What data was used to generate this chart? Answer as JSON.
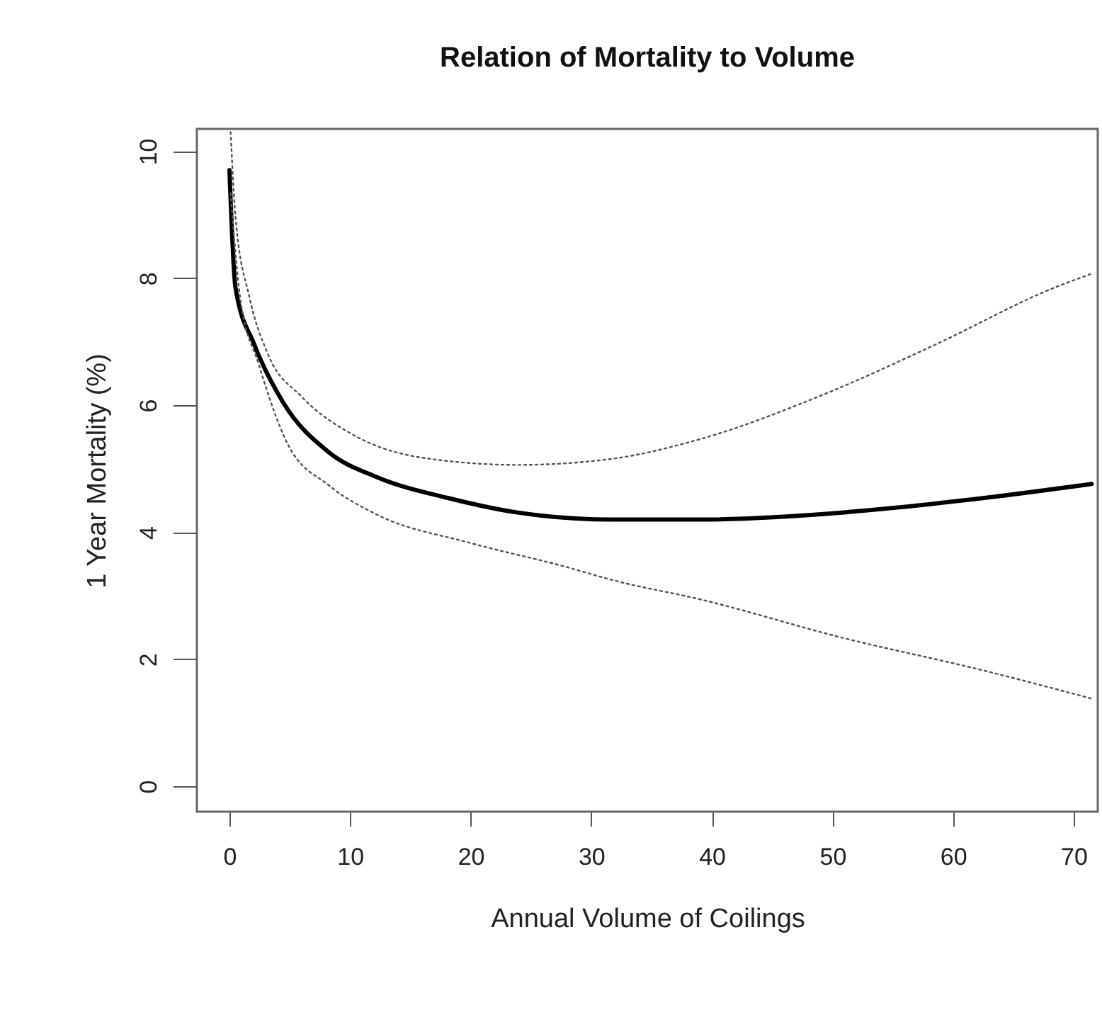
{
  "chart_data": {
    "type": "line",
    "title": "Relation of Mortality to Volume",
    "xlabel": "Annual Volume of Coilings",
    "ylabel": "1 Year Mortality (%)",
    "xlim": [
      -2.7,
      72
    ],
    "ylim": [
      -0.4,
      10.35
    ],
    "xticks": [
      0,
      10,
      20,
      30,
      40,
      50,
      60,
      70
    ],
    "yticks": [
      0,
      2,
      4,
      6,
      8,
      10
    ],
    "grid": false,
    "series": [
      {
        "color": "#000000",
        "line_style": "solid",
        "x": [
          0,
          0.5,
          2.05,
          4.4,
          8.3,
          12.2,
          18.1,
          23.9,
          31.7,
          39.1,
          50.8,
          62.6,
          71.5
        ],
        "values": [
          9.7,
          7.85,
          6.96,
          6.06,
          5.25,
          4.87,
          4.54,
          4.31,
          4.2,
          4.2,
          4.31,
          4.54,
          4.76
        ]
      },
      {
        "color": "#555555",
        "line_style": "dotted",
        "x": [
          0.1,
          0.5,
          1.66,
          3.2,
          5.95,
          10.2,
          16.1,
          23.9,
          31.5,
          39.1,
          48.9,
          58.6,
          68.4,
          71.5
        ],
        "values": [
          10.3,
          8.97,
          7.7,
          6.8,
          6.14,
          5.54,
          5.17,
          5.06,
          5.15,
          5.47,
          6.14,
          6.96,
          7.85,
          8.07
        ]
      },
      {
        "color": "#555555",
        "line_style": "dotted",
        "x": [
          0.1,
          0.88,
          2.4,
          4.8,
          8.3,
          12.2,
          20,
          27.8,
          31.9,
          39.1,
          50.8,
          62.6,
          71.5
        ],
        "values": [
          9.34,
          7.7,
          6.66,
          5.4,
          4.73,
          4.28,
          3.83,
          3.46,
          3.24,
          2.94,
          2.34,
          1.82,
          1.38
        ]
      }
    ]
  }
}
